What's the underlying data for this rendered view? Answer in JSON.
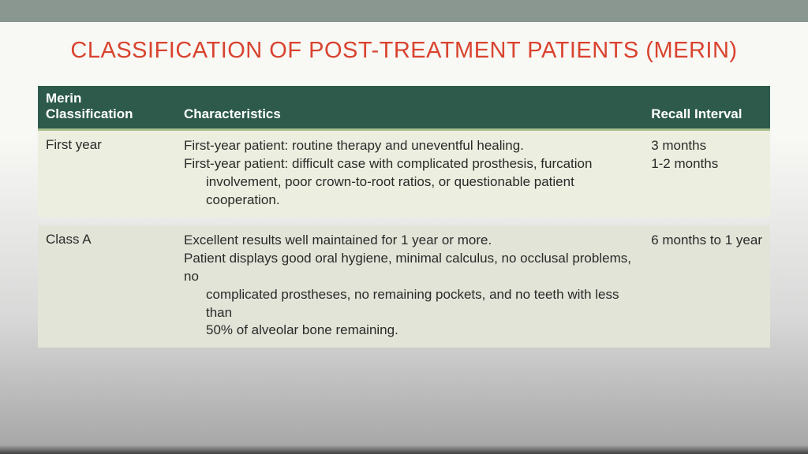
{
  "title": {
    "text": "CLASSIFICATION OF POST-TREATMENT PATIENTS (MERIN)",
    "color": "#d9432f"
  },
  "table": {
    "header_bg": "#2d5a4a",
    "header_text_color": "#ffffff",
    "header_underline": "#a8bf8f",
    "row_bg_a": "#eceee0",
    "row_bg_b": "#e2e4d8",
    "columns": {
      "c1_line1": "Merin",
      "c1_line2": "Classification",
      "c2": "Characteristics",
      "c3": "Recall Interval"
    },
    "rows": [
      {
        "classification": "First year",
        "char_lines": [
          "First-year patient: routine therapy and uneventful healing.",
          "First-year patient: difficult case with complicated prosthesis, furcation",
          "    involvement, poor crown-to-root ratios, or questionable patient cooperation."
        ],
        "char_indent_flags": [
          false,
          false,
          true
        ],
        "recall_lines": [
          "3 months",
          "1-2 months"
        ]
      },
      {
        "classification": "Class A",
        "char_lines": [
          "Excellent results well maintained for 1 year or more.",
          "Patient displays good oral hygiene, minimal calculus, no occlusal problems, no",
          "    complicated prostheses, no remaining pockets, and no teeth with less than",
          "    50% of alveolar bone remaining."
        ],
        "char_indent_flags": [
          false,
          false,
          true,
          true
        ],
        "recall_lines": [
          "6 months to 1 year"
        ]
      }
    ]
  }
}
